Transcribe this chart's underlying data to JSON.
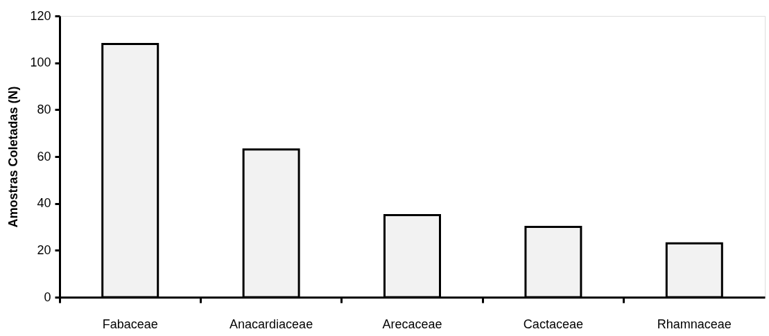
{
  "chart_data": {
    "type": "bar",
    "ylabel": "Amostras Coletadas (N)",
    "categories": [
      "Fabaceae",
      "Anacardiaceae",
      "Arecaceae",
      "Cactaceae",
      "Rhamnaceae"
    ],
    "values": [
      108,
      63,
      35,
      30,
      23
    ],
    "color": "#f2f2f2",
    "ylim": [
      0,
      120
    ],
    "yticks": [
      0,
      20,
      40,
      60,
      80,
      100,
      120
    ],
    "grid": false
  }
}
